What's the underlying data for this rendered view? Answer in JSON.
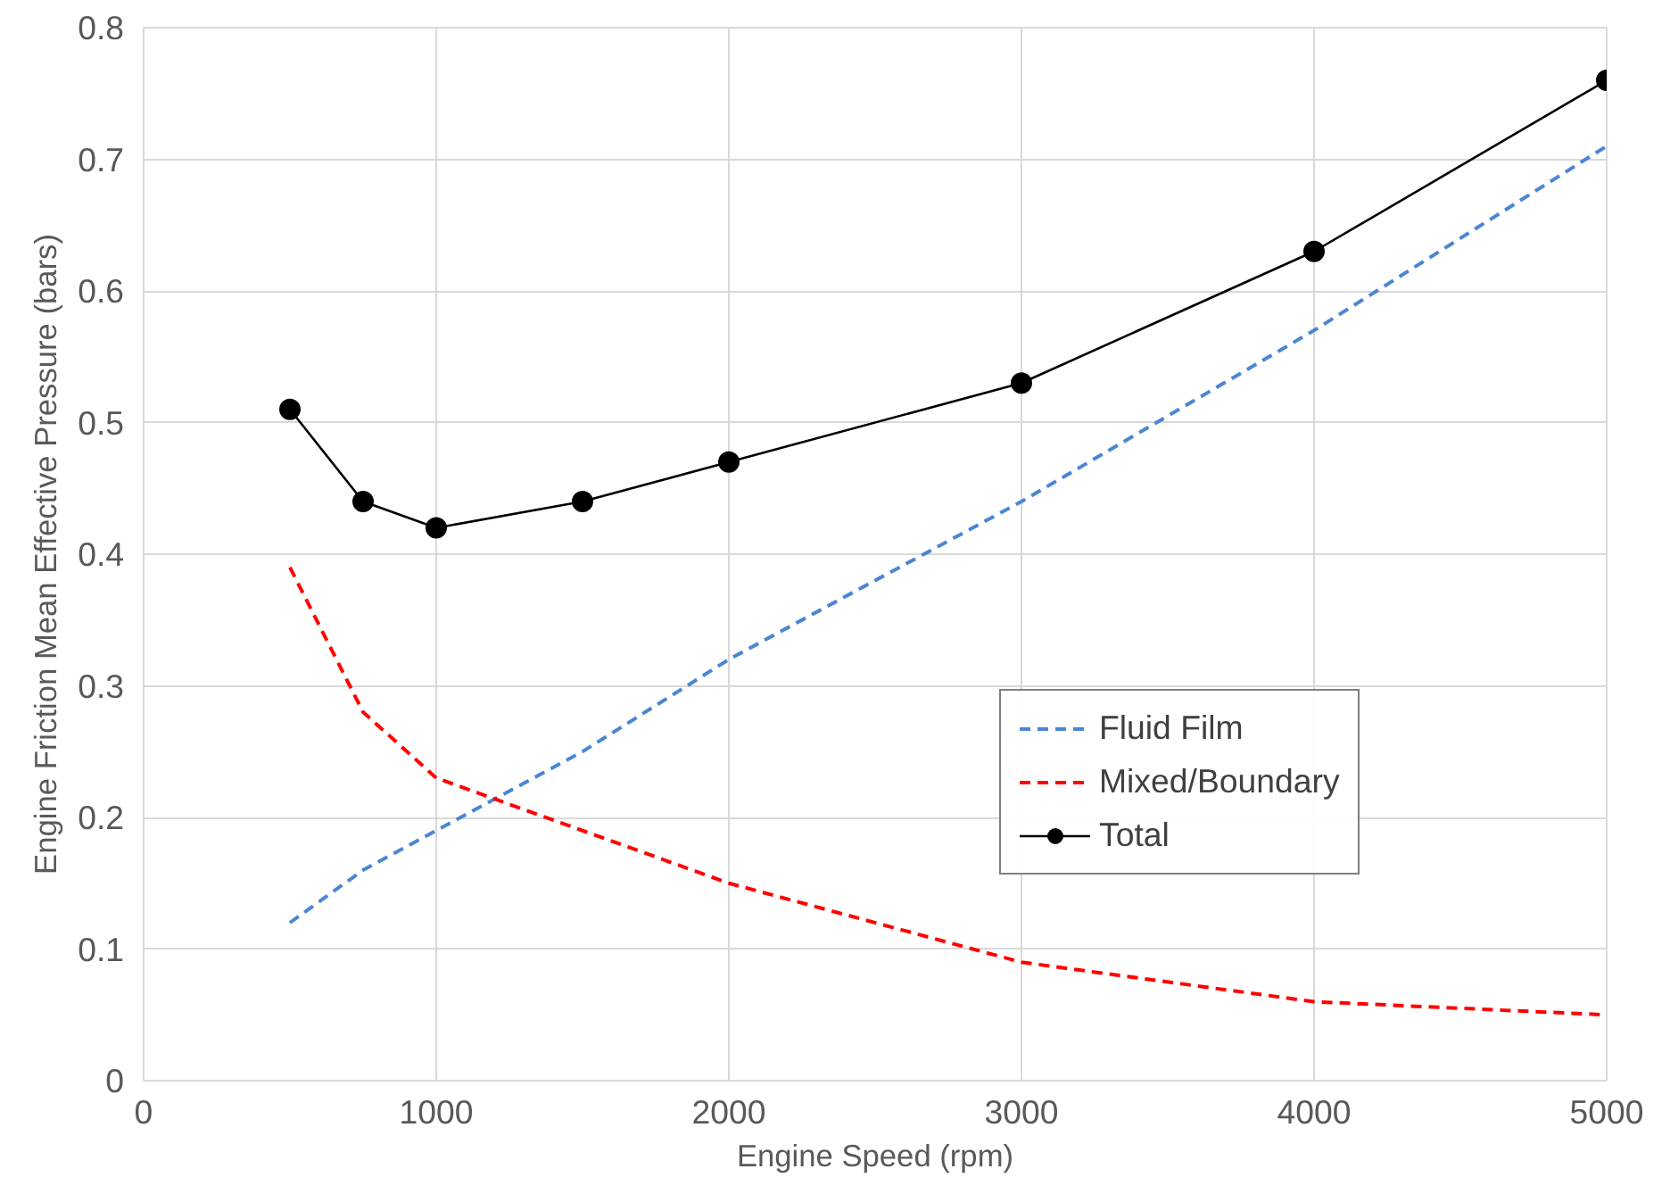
{
  "chart_data": {
    "type": "line",
    "xlabel": "Engine Speed (rpm)",
    "ylabel": "Engine Friction Mean Effective Pressure (bars)",
    "xlim": [
      0,
      5000
    ],
    "xticks": [
      0,
      1000,
      2000,
      3000,
      4000,
      5000
    ],
    "ylim": [
      0,
      0.8
    ],
    "yticks": [
      0,
      0.1,
      0.2,
      0.3,
      0.4,
      0.5,
      0.6,
      0.7,
      0.8
    ],
    "x": [
      500,
      750,
      1000,
      1500,
      2000,
      3000,
      4000,
      5000
    ],
    "series": [
      {
        "name": "Fluid Film",
        "color": "#4a86d4",
        "line_style": "dashed",
        "marker": "none",
        "values": [
          0.12,
          0.16,
          0.19,
          0.25,
          0.32,
          0.44,
          0.57,
          0.71
        ]
      },
      {
        "name": "Mixed/Boundary",
        "color": "#ff0000",
        "line_style": "dashed",
        "marker": "none",
        "values": [
          0.39,
          0.28,
          0.23,
          0.19,
          0.15,
          0.09,
          0.06,
          0.05
        ]
      },
      {
        "name": "Total",
        "color": "#000000",
        "line_style": "solid",
        "marker": "circle",
        "values": [
          0.51,
          0.44,
          0.42,
          0.44,
          0.47,
          0.53,
          0.63,
          0.76
        ]
      }
    ],
    "grid": true,
    "legend": "right"
  }
}
